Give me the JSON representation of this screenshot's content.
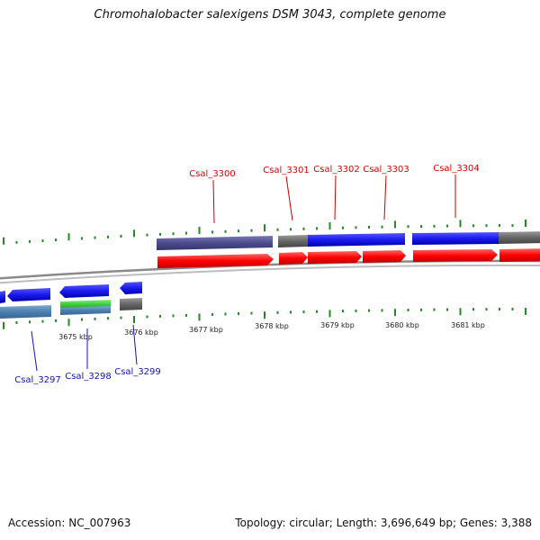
{
  "header": {
    "title": "Chromohalobacter salexigens DSM 3043, complete genome"
  },
  "footer": {
    "accession": "Accession: NC_007963",
    "summary": "Topology: circular; Length: 3,696,649 bp; Genes: 3,388"
  },
  "map": {
    "kbp_labels": [
      "3675 kbp",
      "3676 kbp",
      "3677 kbp",
      "3678 kbp",
      "3679 kbp",
      "3680 kbp",
      "3681 kbp"
    ],
    "forward_genes": [
      "Csal_3300",
      "Csal_3301",
      "Csal_3302",
      "Csal_3303",
      "Csal_3304"
    ],
    "reverse_genes": [
      "Csal_3297",
      "Csal_3298",
      "Csal_3299"
    ]
  },
  "colors": {
    "forward_gene": "#ff0000",
    "forward_cds_blue": "#1a1aee",
    "forward_cds_purple": "#4b4b8e",
    "reverse_cds_blue": "#1a1aee",
    "reverse_cds_steel": "#4a7fb0",
    "reverse_cds_green": "#3ecf3e",
    "gray_feature": "#666666",
    "tick_green": "#228b22",
    "forward_label": "#dd0000",
    "reverse_label": "#1111bb",
    "backbone": "#888888"
  }
}
